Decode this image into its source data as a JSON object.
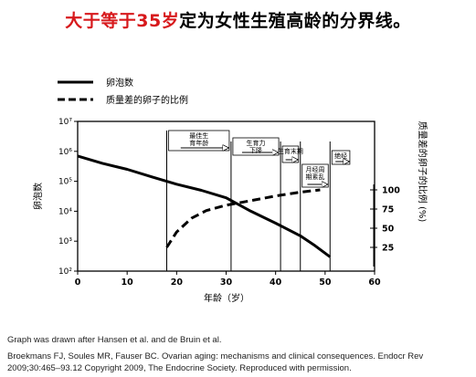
{
  "slide": {
    "title_highlight": "大于等于35岁",
    "title_rest": "定为女性生殖高龄的分界线。",
    "source_line_1": "Graph was drawn after Hansen et al. and de Bruin et al.",
    "source_line_2": "Broekmans FJ, Soules MR, Fauser BC. Ovarian aging: mechanisms and clinical consequences. Endocr Rev 2009;30:465–93.12 Copyright 2009, The Endocrine Society. Reproduced with permission."
  },
  "colors": {
    "highlight": "#d7191c",
    "ink": "#000000"
  },
  "chart_data": {
    "type": "line",
    "xlabel": "年龄（岁）",
    "ylabel": "卵泡数",
    "y2label": "质量差的卵子的比例 (%)",
    "x_ticks": [
      "0",
      "10",
      "20",
      "30",
      "40",
      "50",
      "60"
    ],
    "y_ticks": [
      "10⁷",
      "10⁶",
      "10⁵",
      "10⁴",
      "10³",
      "10²"
    ],
    "y2_ticks": [
      "100",
      "75",
      "50",
      "25"
    ],
    "xlim": [
      0,
      60
    ],
    "ylim": [
      100,
      10000000
    ],
    "y_scale": "log",
    "y2lim": [
      0,
      100
    ],
    "legend_position": "top-left",
    "series": [
      {
        "name": "卵泡数",
        "style": "solid",
        "axis": "left",
        "x": [
          0,
          5,
          10,
          15,
          20,
          25,
          30,
          35,
          40,
          45,
          48,
          51
        ],
        "y": [
          700000,
          400000,
          250000,
          140000,
          80000,
          50000,
          28000,
          10000,
          4000,
          1500,
          700,
          300
        ]
      },
      {
        "name": "质量差的卵子的比例",
        "style": "dashed",
        "axis": "right",
        "x": [
          18,
          19,
          20,
          23,
          26,
          30,
          35,
          40,
          45,
          49
        ],
        "y": [
          25,
          35,
          45,
          63,
          73,
          80,
          86,
          92,
          97,
          100
        ]
      }
    ],
    "stages": [
      {
        "label": "最佳生育年龄",
        "start": 18,
        "end": 31
      },
      {
        "label": "生育力下降",
        "start": 31,
        "end": 41
      },
      {
        "label": "生育末期",
        "start": 41,
        "end": 45
      },
      {
        "label": "月经周期紊乱",
        "start": 45,
        "end": 51
      },
      {
        "label": "绝经",
        "start": 51,
        "end": 60
      }
    ]
  }
}
